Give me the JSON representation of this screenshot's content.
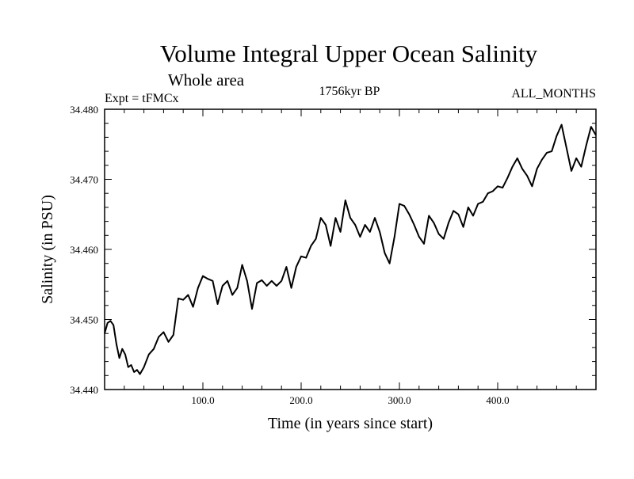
{
  "colors": {
    "line": "#000000",
    "background": "#ffffff"
  },
  "chart_data": {
    "type": "line",
    "title": "Volume Integral Upper Ocean Salinity",
    "subtitle": "Whole area",
    "left_header": "Expt = tFMCx",
    "center_header": "1756kyr BP",
    "right_header": "ALL_MONTHS",
    "xlabel": "Time (in years since start)",
    "ylabel": "Salinity (in PSU)",
    "xlim": [
      0,
      500
    ],
    "ylim": [
      34.44,
      34.48
    ],
    "x_ticks": [
      100,
      200,
      300,
      400
    ],
    "x_tick_labels": [
      "100.0",
      "200.0",
      "300.0",
      "400.0"
    ],
    "y_ticks": [
      34.44,
      34.45,
      34.46,
      34.47,
      34.48
    ],
    "y_tick_labels": [
      "34.440",
      "34.450",
      "34.460",
      "34.470",
      "34.480"
    ],
    "series": [
      {
        "name": "salinity",
        "x": [
          0,
          3,
          6,
          9,
          12,
          15,
          18,
          21,
          24,
          27,
          30,
          33,
          36,
          40,
          45,
          50,
          55,
          60,
          65,
          70,
          75,
          80,
          85,
          90,
          95,
          100,
          105,
          110,
          115,
          120,
          125,
          130,
          135,
          140,
          145,
          150,
          155,
          160,
          165,
          170,
          175,
          180,
          185,
          190,
          195,
          200,
          205,
          210,
          215,
          220,
          225,
          230,
          235,
          240,
          245,
          250,
          255,
          260,
          265,
          270,
          275,
          280,
          285,
          290,
          295,
          300,
          305,
          310,
          315,
          320,
          325,
          330,
          335,
          340,
          345,
          350,
          355,
          360,
          365,
          370,
          375,
          380,
          385,
          390,
          395,
          400,
          405,
          410,
          415,
          420,
          425,
          430,
          435,
          440,
          445,
          450,
          455,
          460,
          465,
          470,
          475,
          480,
          485,
          490,
          495,
          500
        ],
        "y": [
          34.448,
          34.4495,
          34.4498,
          34.4492,
          34.4465,
          34.4445,
          34.4458,
          34.445,
          34.4432,
          34.4435,
          34.4425,
          34.4428,
          34.4422,
          34.4432,
          34.445,
          34.4458,
          34.4475,
          34.4482,
          34.4468,
          34.4478,
          34.453,
          34.4528,
          34.4535,
          34.4518,
          34.4545,
          34.4562,
          34.4558,
          34.4555,
          34.4522,
          34.4548,
          34.4555,
          34.4535,
          34.4545,
          34.4578,
          34.4555,
          34.4515,
          34.4552,
          34.4556,
          34.4548,
          34.4555,
          34.4548,
          34.4555,
          34.4575,
          34.4545,
          34.4575,
          34.459,
          34.4588,
          34.4605,
          34.4615,
          34.4645,
          34.4635,
          34.4605,
          34.4645,
          34.4625,
          34.467,
          34.4645,
          34.4635,
          34.4618,
          34.4635,
          34.4625,
          34.4645,
          34.4625,
          34.4595,
          34.458,
          34.4618,
          34.4665,
          34.4662,
          34.465,
          34.4635,
          34.4618,
          34.4608,
          34.4648,
          34.4638,
          34.4622,
          34.4615,
          34.4638,
          34.4655,
          34.465,
          34.4632,
          34.466,
          34.4648,
          34.4665,
          34.4668,
          34.468,
          34.4683,
          34.469,
          34.4688,
          34.4702,
          34.4718,
          34.473,
          34.4715,
          34.4705,
          34.469,
          34.4715,
          34.4728,
          34.4738,
          34.474,
          34.4762,
          34.4778,
          34.4745,
          34.4712,
          34.473,
          34.4718,
          34.4748,
          34.4775,
          34.4763
        ]
      }
    ]
  }
}
